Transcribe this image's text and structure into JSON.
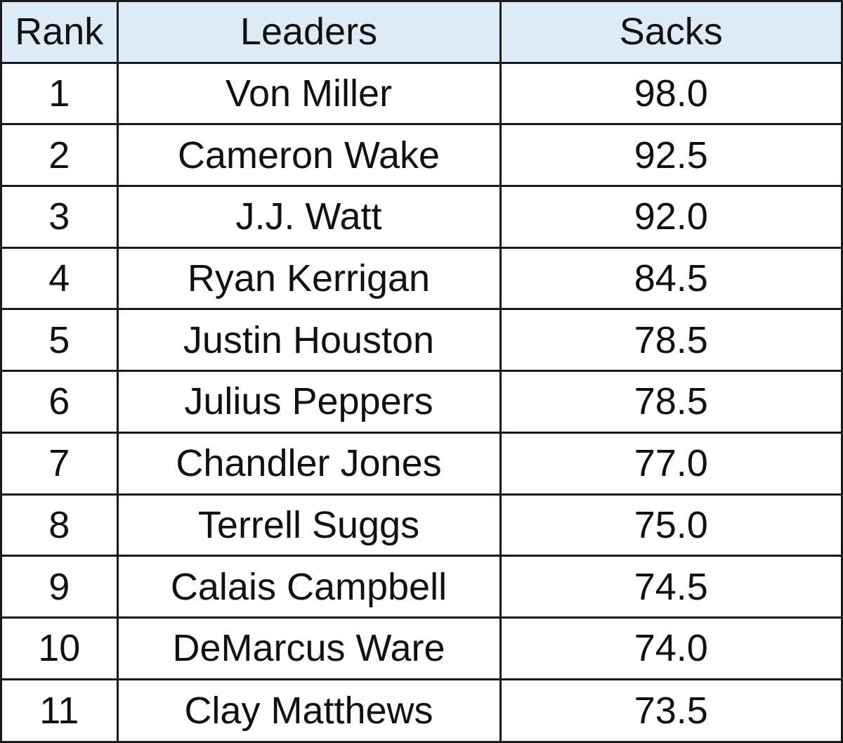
{
  "table": {
    "header_background": "#ddebf7",
    "border_color": "#1a1a1a",
    "columns": [
      "Rank",
      "Leaders",
      "Sacks"
    ],
    "rows": [
      {
        "rank": "1",
        "leader": "Von Miller",
        "sacks": "98.0"
      },
      {
        "rank": "2",
        "leader": "Cameron Wake",
        "sacks": "92.5"
      },
      {
        "rank": "3",
        "leader": "J.J. Watt",
        "sacks": "92.0"
      },
      {
        "rank": "4",
        "leader": "Ryan Kerrigan",
        "sacks": "84.5"
      },
      {
        "rank": "5",
        "leader": "Justin Houston",
        "sacks": "78.5"
      },
      {
        "rank": "6",
        "leader": "Julius Peppers",
        "sacks": "78.5"
      },
      {
        "rank": "7",
        "leader": "Chandler Jones",
        "sacks": "77.0"
      },
      {
        "rank": "8",
        "leader": "Terrell Suggs",
        "sacks": "75.0"
      },
      {
        "rank": "9",
        "leader": "Calais Campbell",
        "sacks": "74.5"
      },
      {
        "rank": "10",
        "leader": "DeMarcus Ware",
        "sacks": "74.0"
      },
      {
        "rank": "11",
        "leader": "Clay Matthews",
        "sacks": "73.5"
      }
    ]
  }
}
